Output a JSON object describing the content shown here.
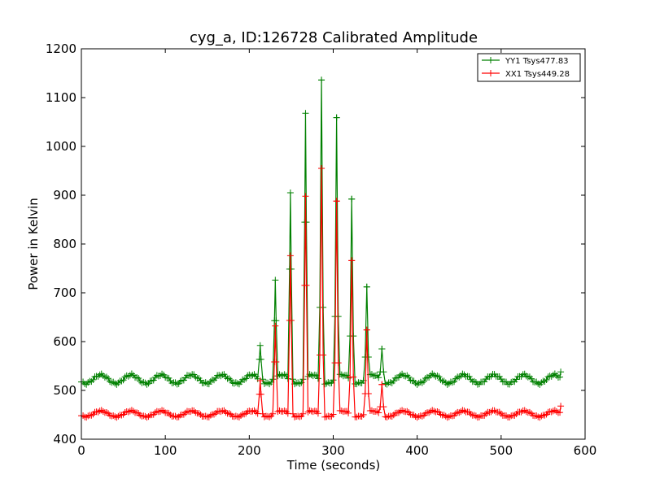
{
  "chart_data": {
    "type": "line",
    "title": "cyg_a, ID:126728 Calibrated Amplitude",
    "xlabel": "Time (seconds)",
    "ylabel": "Power in Kelvin",
    "xlim": [
      0,
      600
    ],
    "ylim": [
      400,
      1200
    ],
    "xticks": [
      0,
      100,
      200,
      300,
      400,
      500,
      600
    ],
    "yticks": [
      400,
      500,
      600,
      700,
      800,
      900,
      1000,
      1100,
      1200
    ],
    "xtick_labels": [
      "0",
      "100",
      "200",
      "300",
      "400",
      "500",
      "600"
    ],
    "ytick_labels": [
      "400",
      "500",
      "600",
      "700",
      "800",
      "900",
      "1000",
      "1100",
      "1200"
    ],
    "grid": false,
    "legend_position": "top-right",
    "marker": "+",
    "series": [
      {
        "name": "YY1 Tsys477.83",
        "color": "#008000",
        "baseline": 523,
        "ripple_amplitude": 9,
        "ripple_period_s": 36,
        "x_range": [
          0,
          571
        ],
        "sample_step_s": 2,
        "peaks": [
          {
            "x": 213,
            "y": 592
          },
          {
            "x": 231,
            "y": 726
          },
          {
            "x": 249,
            "y": 905
          },
          {
            "x": 267,
            "y": 1068
          },
          {
            "x": 286,
            "y": 1136
          },
          {
            "x": 304,
            "y": 1059
          },
          {
            "x": 322,
            "y": 892
          },
          {
            "x": 340,
            "y": 712
          },
          {
            "x": 358,
            "y": 585
          }
        ],
        "end_value": 538
      },
      {
        "name": "XX1 Tsys449.28",
        "color": "#ff0000",
        "baseline": 452,
        "ripple_amplitude": 6,
        "ripple_period_s": 36,
        "x_range": [
          0,
          571
        ],
        "sample_step_s": 2,
        "peaks": [
          {
            "x": 213,
            "y": 520
          },
          {
            "x": 231,
            "y": 632
          },
          {
            "x": 249,
            "y": 776
          },
          {
            "x": 267,
            "y": 898
          },
          {
            "x": 286,
            "y": 955
          },
          {
            "x": 304,
            "y": 888
          },
          {
            "x": 322,
            "y": 766
          },
          {
            "x": 340,
            "y": 624
          },
          {
            "x": 358,
            "y": 512
          }
        ],
        "end_value": 468
      }
    ]
  }
}
